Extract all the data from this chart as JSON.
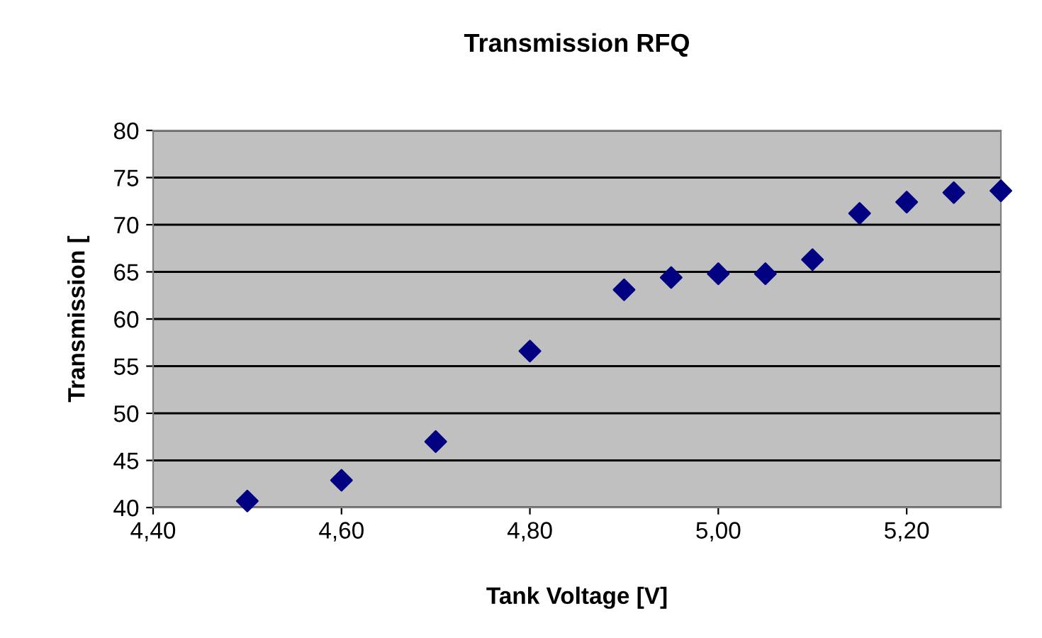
{
  "chart_data": {
    "type": "scatter",
    "title": "Transmission RFQ",
    "xlabel": "Tank Voltage [V]",
    "ylabel": "Transmission [",
    "x": [
      4.5,
      4.6,
      4.7,
      4.8,
      4.9,
      4.95,
      5.0,
      5.05,
      5.1,
      5.15,
      5.2,
      5.25,
      5.3
    ],
    "series": [
      {
        "color": "#000080",
        "values": [
          40.7,
          42.9,
          47.0,
          56.6,
          63.1,
          64.4,
          64.8,
          64.8,
          66.3,
          71.2,
          72.4,
          73.4,
          73.6
        ]
      }
    ],
    "xlim": [
      4.4,
      5.3
    ],
    "xticks": [
      {
        "value": 4.4,
        "label": "4,40"
      },
      {
        "value": 4.6,
        "label": "4,60"
      },
      {
        "value": 4.8,
        "label": "4,80"
      },
      {
        "value": 5.0,
        "label": "5,00"
      },
      {
        "value": 5.2,
        "label": "5,20"
      }
    ],
    "ylim": [
      40,
      80
    ],
    "yticks": [
      40,
      45,
      50,
      55,
      60,
      65,
      70,
      75,
      80
    ],
    "grid": "y",
    "marker": "diamond"
  }
}
